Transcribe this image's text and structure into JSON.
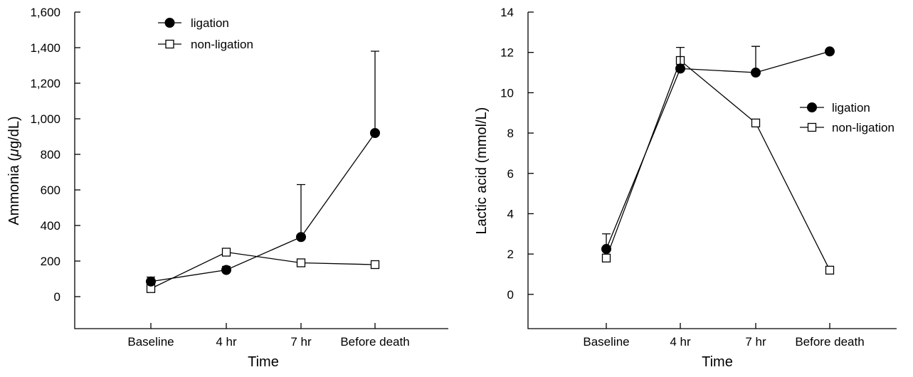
{
  "chart_data": [
    {
      "type": "line",
      "title": "",
      "xlabel": "Time",
      "ylabel_parts": [
        "Ammonia (",
        "μ",
        "g/dL)"
      ],
      "categories": [
        "Baseline",
        "4 hr",
        "7 hr",
        "Before death"
      ],
      "ylim": [
        -180,
        1600
      ],
      "yticks": [
        0,
        200,
        400,
        600,
        800,
        1000,
        1200,
        1400,
        1600
      ],
      "ytick_labels": [
        "0",
        "200",
        "400",
        "600",
        "800",
        "1,000",
        "1,200",
        "1,400",
        "1,600"
      ],
      "grid": false,
      "legend_position": "top-left",
      "series": [
        {
          "name": "ligation",
          "marker": "filled-circle",
          "values": [
            85,
            150,
            335,
            920
          ],
          "error_upper": [
            110,
            170,
            630,
            1380
          ]
        },
        {
          "name": "non-ligation",
          "marker": "open-square",
          "values": [
            45,
            250,
            190,
            180
          ],
          "error_upper": [
            null,
            null,
            null,
            null
          ]
        }
      ]
    },
    {
      "type": "line",
      "title": "",
      "xlabel": "Time",
      "ylabel": "Lactic acid (mmol/L)",
      "categories": [
        "Baseline",
        "4 hr",
        "7 hr",
        "Before death"
      ],
      "ylim": [
        -1.7,
        14
      ],
      "yticks": [
        0,
        2,
        4,
        6,
        8,
        10,
        12,
        14
      ],
      "ytick_labels": [
        "0",
        "2",
        "4",
        "6",
        "8",
        "10",
        "12",
        "14"
      ],
      "grid": false,
      "legend_position": "right",
      "series": [
        {
          "name": "ligation",
          "marker": "filled-circle",
          "values": [
            2.25,
            11.2,
            11.0,
            12.05
          ],
          "error_upper": [
            3.0,
            12.25,
            12.3,
            null
          ]
        },
        {
          "name": "non-ligation",
          "marker": "open-square",
          "values": [
            1.8,
            11.6,
            8.5,
            1.2
          ],
          "error_upper": [
            null,
            null,
            null,
            null
          ]
        }
      ]
    }
  ]
}
